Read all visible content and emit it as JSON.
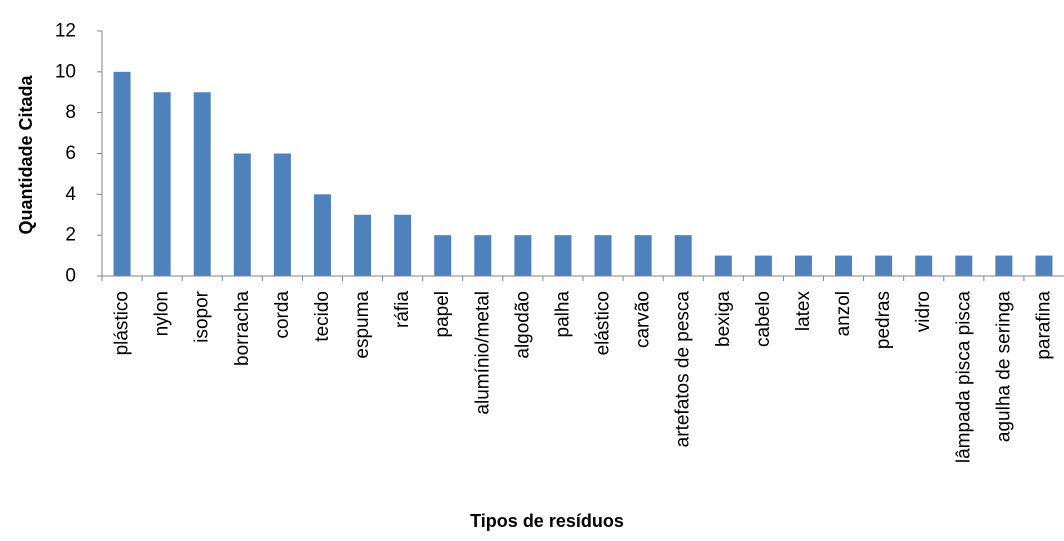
{
  "chart_data": {
    "type": "bar",
    "title": "",
    "xlabel": "Tipos de resíduos",
    "ylabel": "Quantidade Citada",
    "ylim": [
      0,
      12
    ],
    "yticks": [
      0,
      2,
      4,
      6,
      8,
      10,
      12
    ],
    "grid": false,
    "bar_color": "#4F81BD",
    "categories": [
      "plástico",
      "nylon",
      "isopor",
      "borracha",
      "corda",
      "tecido",
      "espuma",
      "ráfia",
      "papel",
      "alumínio/metal",
      "algodão",
      "palha",
      "elástico",
      "carvão",
      "artefatos de pesca",
      "bexiga",
      "cabelo",
      "latex",
      "anzol",
      "pedras",
      "vidro",
      "lâmpada pisca pisca",
      "agulha de seringa",
      "parafina"
    ],
    "values": [
      10,
      9,
      9,
      6,
      6,
      4,
      3,
      3,
      2,
      2,
      2,
      2,
      2,
      2,
      2,
      1,
      1,
      1,
      1,
      1,
      1,
      1,
      1,
      1
    ]
  }
}
